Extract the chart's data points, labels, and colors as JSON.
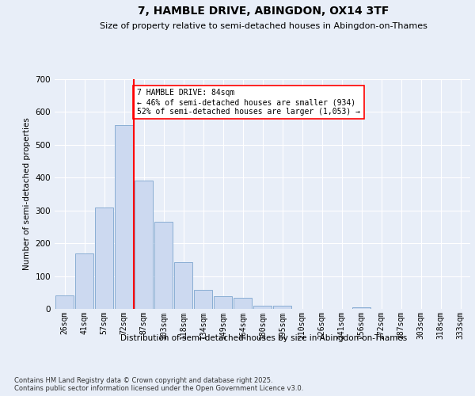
{
  "title": "7, HAMBLE DRIVE, ABINGDON, OX14 3TF",
  "subtitle": "Size of property relative to semi-detached houses in Abingdon-on-Thames",
  "xlabel": "Distribution of semi-detached houses by size in Abingdon-on-Thames",
  "ylabel": "Number of semi-detached properties",
  "categories": [
    "26sqm",
    "41sqm",
    "57sqm",
    "72sqm",
    "87sqm",
    "103sqm",
    "118sqm",
    "134sqm",
    "149sqm",
    "164sqm",
    "180sqm",
    "195sqm",
    "210sqm",
    "226sqm",
    "241sqm",
    "256sqm",
    "272sqm",
    "287sqm",
    "303sqm",
    "318sqm",
    "333sqm"
  ],
  "values": [
    42,
    168,
    310,
    560,
    390,
    265,
    143,
    57,
    38,
    33,
    10,
    10,
    0,
    0,
    0,
    5,
    0,
    0,
    0,
    0,
    0
  ],
  "bar_color": "#ccd9f0",
  "bar_edge_color": "#8aaed4",
  "vline_x_index": 3,
  "vline_color": "red",
  "annotation_text": "7 HAMBLE DRIVE: 84sqm\n← 46% of semi-detached houses are smaller (934)\n52% of semi-detached houses are larger (1,053) →",
  "annotation_box_color": "white",
  "annotation_box_edge": "red",
  "ylim": [
    0,
    700
  ],
  "yticks": [
    0,
    100,
    200,
    300,
    400,
    500,
    600,
    700
  ],
  "footer_text": "Contains HM Land Registry data © Crown copyright and database right 2025.\nContains public sector information licensed under the Open Government Licence v3.0.",
  "background_color": "#e8eef8",
  "plot_background": "#e8eef8",
  "grid_color": "white"
}
